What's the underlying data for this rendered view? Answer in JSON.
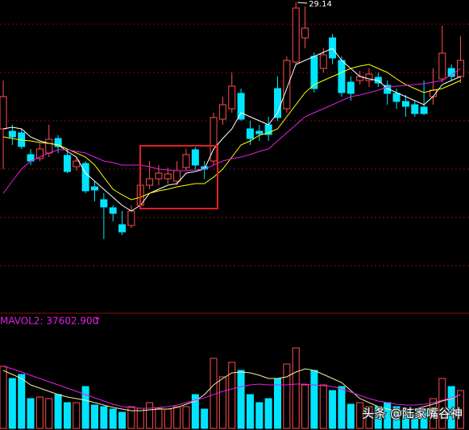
{
  "chart_data": [
    {
      "type": "candlestick",
      "ylim": [
        13.74,
        29.26
      ],
      "yticks": [
        28.06,
        25.66,
        23.26,
        20.86,
        18.46,
        16.06
      ],
      "grid": true,
      "high_label": 29.14,
      "high_index": 32,
      "up_color": "#ff4d4d",
      "down_color": "#00e5ff",
      "open": [
        22.86,
        22.74,
        22.66,
        21.58,
        21.38,
        21.66,
        22.38,
        21.54,
        20.98,
        21.14,
        19.98,
        19.34,
        18.94,
        18.1,
        18.06,
        19.06,
        20.06,
        20.38,
        20.38,
        20.26,
        20.94,
        21.82,
        20.98,
        21.26,
        23.34,
        23.86,
        24.62,
        22.86,
        22.74,
        23.06,
        24.86,
        23.86,
        26.18,
        27.38,
        26.46,
        25.86,
        27.38,
        26.26,
        25.18,
        25.26,
        25.26,
        25.42,
        25.02,
        24.62,
        24.22,
        24.06,
        23.94,
        24.46,
        25.34,
        25.86,
        25.46
      ],
      "close": [
        24.46,
        22.46,
        21.98,
        21.26,
        21.86,
        22.34,
        21.98,
        20.74,
        21.26,
        19.78,
        19.82,
        18.98,
        18.66,
        17.74,
        18.78,
        20.06,
        20.38,
        20.66,
        20.62,
        20.78,
        21.58,
        21.06,
        20.86,
        23.42,
        24.06,
        24.98,
        23.34,
        22.38,
        22.62,
        22.58,
        23.42,
        26.26,
        28.86,
        27.86,
        24.86,
        26.54,
        26.38,
        24.66,
        24.62,
        25.46,
        25.58,
        25.14,
        24.62,
        24.22,
        23.98,
        23.62,
        23.62,
        24.78,
        26.62,
        25.46,
        26.26
      ],
      "high": [
        25.26,
        23.06,
        22.86,
        21.86,
        22.14,
        23.06,
        22.54,
        21.86,
        21.46,
        21.26,
        20.26,
        19.66,
        19.06,
        18.78,
        19.06,
        20.26,
        21.26,
        21.06,
        20.94,
        21.26,
        21.86,
        21.94,
        21.26,
        23.66,
        24.46,
        25.66,
        24.86,
        23.26,
        23.06,
        23.46,
        25.46,
        26.46,
        29.14,
        28.94,
        26.66,
        26.86,
        27.58,
        26.46,
        25.46,
        25.74,
        25.86,
        25.66,
        25.26,
        24.86,
        24.54,
        24.26,
        25.26,
        25.86,
        27.98,
        26.06,
        27.46
      ],
      "low": [
        20.86,
        22.06,
        21.86,
        21.06,
        21.26,
        21.46,
        21.66,
        20.66,
        20.78,
        19.66,
        19.26,
        17.38,
        18.26,
        17.58,
        17.94,
        18.86,
        19.86,
        20.06,
        20.14,
        20.06,
        20.78,
        20.86,
        20.38,
        21.06,
        23.06,
        23.66,
        23.26,
        22.06,
        22.26,
        22.26,
        23.26,
        23.66,
        26.06,
        26.86,
        24.66,
        25.66,
        26.06,
        24.46,
        24.26,
        25.06,
        24.94,
        24.94,
        24.06,
        23.86,
        23.46,
        23.46,
        23.54,
        24.06,
        25.18,
        25.26,
        25.14
      ],
      "series": [
        {
          "color": "#ffffff",
          "values": [
            22.86,
            22.94,
            22.86,
            22.46,
            22.26,
            22.14,
            22.06,
            21.74,
            21.46,
            20.66,
            20.26,
            19.86,
            19.46,
            19.06,
            18.78,
            19.06,
            19.66,
            19.86,
            20.06,
            20.14,
            20.66,
            20.74,
            20.86,
            21.86,
            22.38,
            22.86,
            23.66,
            23.46,
            23.26,
            23.06,
            23.66,
            24.86,
            26.06,
            26.26,
            26.46,
            26.66,
            26.86,
            26.26,
            25.86,
            25.46,
            25.34,
            25.26,
            24.86,
            24.66,
            24.46,
            24.26,
            24.06,
            24.46,
            25.06,
            25.26,
            25.46
          ]
        },
        {
          "color": "#ffff00",
          "values": [
            22.46,
            22.38,
            22.3,
            22.26,
            22.18,
            22.14,
            22.06,
            21.86,
            21.66,
            21.46,
            21.06,
            20.46,
            19.86,
            19.58,
            19.34,
            19.46,
            19.66,
            19.78,
            19.86,
            19.98,
            20.06,
            20.14,
            20.14,
            20.46,
            20.86,
            21.46,
            22.06,
            22.26,
            22.54,
            22.66,
            22.86,
            23.46,
            24.06,
            24.66,
            25.06,
            25.26,
            25.46,
            25.66,
            25.86,
            25.98,
            26.06,
            25.86,
            25.66,
            25.34,
            25.06,
            24.86,
            24.66,
            24.78,
            24.86,
            25.06,
            25.26
          ]
        },
        {
          "color": "#e020e0",
          "values": [
            19.66,
            20.26,
            20.86,
            21.26,
            21.46,
            21.66,
            21.82,
            21.82,
            21.74,
            21.66,
            21.46,
            21.26,
            21.18,
            21.06,
            21.06,
            21.06,
            20.98,
            20.86,
            20.82,
            20.78,
            20.78,
            20.82,
            20.86,
            21.06,
            21.26,
            21.38,
            21.46,
            21.58,
            21.74,
            21.86,
            22.26,
            22.66,
            23.06,
            23.46,
            23.66,
            23.86,
            24.06,
            24.26,
            24.46,
            24.54,
            24.66,
            24.78,
            24.94,
            24.98,
            25.02,
            25.06,
            25.1,
            25.18,
            25.26,
            25.54,
            25.86
          ]
        }
      ]
    },
    {
      "type": "volume",
      "header": "MAVOL2: 37602.900",
      "arrow": "↑",
      "header_color": "#e020e0",
      "ylim": [
        0,
        123300
      ],
      "values": [
        69300,
        55800,
        60300,
        33300,
        35100,
        33300,
        37800,
        28800,
        28800,
        46800,
        26100,
        24300,
        21600,
        18000,
        24300,
        22500,
        28800,
        22500,
        21600,
        24300,
        24300,
        37800,
        21600,
        78300,
        57600,
        73800,
        64800,
        37800,
        28800,
        33300,
        55800,
        72000,
        90000,
        48600,
        64800,
        48600,
        42300,
        46800,
        27000,
        28800,
        24300,
        24300,
        28800,
        24300,
        19800,
        15300,
        21600,
        33300,
        55800,
        46800,
        42300
      ],
      "series": [
        {
          "color": "#f0f0a0",
          "values": [
            64800,
            60300,
            55800,
            48600,
            45000,
            41400,
            37800,
            35100,
            33300,
            31500,
            28800,
            26100,
            23400,
            21600,
            19800,
            19800,
            20700,
            21600,
            21600,
            23400,
            27000,
            30600,
            37800,
            48600,
            55800,
            62100,
            63000,
            62100,
            59400,
            55800,
            55800,
            57600,
            63000,
            66600,
            64800,
            60300,
            55800,
            51300,
            42300,
            33300,
            28800,
            24300,
            21600,
            19800,
            19800,
            21600,
            24300,
            27000,
            30600,
            33300,
            37800
          ]
        },
        {
          "color": "#e020e0",
          "values": [
            69300,
            66600,
            63000,
            59400,
            55800,
            52200,
            48600,
            45000,
            41400,
            37800,
            34200,
            30600,
            27000,
            24300,
            23400,
            22500,
            22500,
            23400,
            24300,
            26100,
            28800,
            31500,
            34200,
            37800,
            41400,
            44100,
            46800,
            48600,
            49500,
            48600,
            48600,
            48600,
            49500,
            49500,
            48600,
            47700,
            46800,
            44100,
            40500,
            36900,
            33300,
            30600,
            28800,
            27000,
            26100,
            26100,
            27000,
            28800,
            31500,
            34200,
            37602.9
          ]
        }
      ]
    }
  ],
  "watermark": "头条 @陆家嘴谷神"
}
